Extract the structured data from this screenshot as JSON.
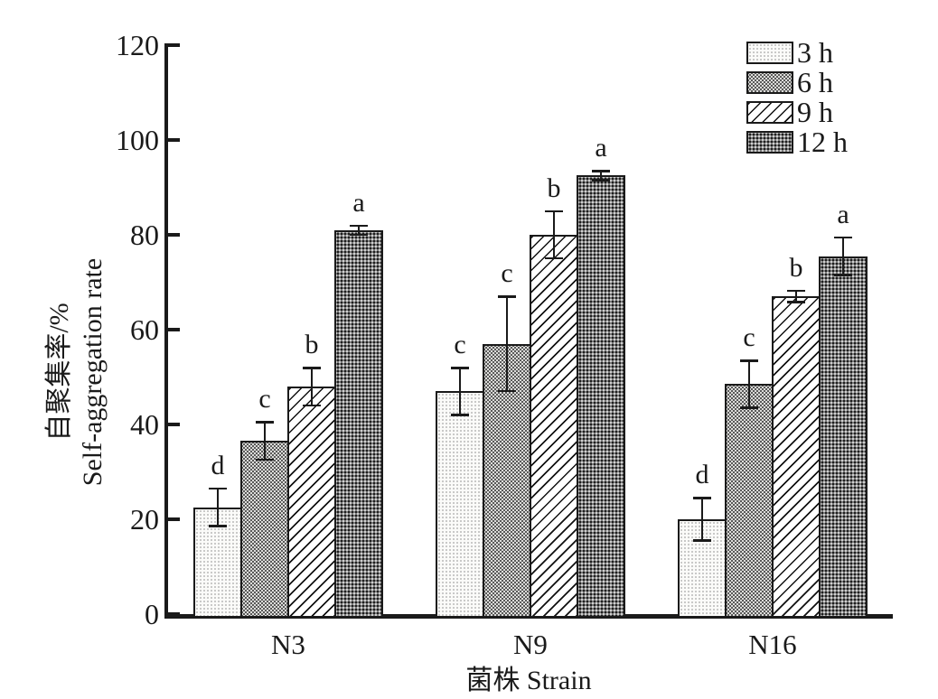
{
  "figure": {
    "background_color": "#ffffff",
    "axis_color": "#1a1a1a"
  },
  "chart_data": {
    "type": "bar",
    "title": "",
    "categories": [
      "N3",
      "N9",
      "N16"
    ],
    "series": [
      {
        "name": "3 h",
        "pattern": "light-dots",
        "values": [
          22.5,
          47.0,
          20.0
        ],
        "errors": [
          4.0,
          5.0,
          4.5
        ],
        "letters": [
          "d",
          "c",
          "d"
        ]
      },
      {
        "name": "6 h",
        "pattern": "gray-checker",
        "values": [
          36.5,
          57.0,
          48.5
        ],
        "errors": [
          4.0,
          10.0,
          5.0
        ],
        "letters": [
          "c",
          "c",
          "c"
        ]
      },
      {
        "name": "9 h",
        "pattern": "diagonal-hatch",
        "values": [
          48.0,
          80.0,
          67.0
        ],
        "errors": [
          4.0,
          5.0,
          1.2
        ],
        "letters": [
          "b",
          "b",
          "b"
        ]
      },
      {
        "name": "12 h",
        "pattern": "dark-checker",
        "values": [
          81.0,
          92.5,
          75.5
        ],
        "errors": [
          1.0,
          1.0,
          4.0
        ],
        "letters": [
          "a",
          "a",
          "a"
        ]
      }
    ],
    "xlabel": "菌株 Strain",
    "ylabel_line1": "自聚集率/%",
    "ylabel_line2": "Self-aggregation rate",
    "ylim": [
      0,
      120
    ],
    "ytick_step": 20,
    "yticks": [
      0,
      20,
      40,
      60,
      80,
      100,
      120
    ],
    "grid": false,
    "error_bars": true,
    "significance_letters": true,
    "legend": {
      "position": "top-right",
      "entries": [
        "3 h",
        "6 h",
        "9 h",
        "12 h"
      ]
    },
    "pattern_colors": {
      "light-dots": {
        "background": "#fbfbf9",
        "dot": "#b8b8b8"
      },
      "gray-checker": {
        "background": "#dcdcda",
        "dot": "#4a4a4a"
      },
      "diagonal-hatch": {
        "background": "#ffffff",
        "line": "#111111"
      },
      "dark-checker": {
        "background": "#7a7a7a",
        "dot": "#1e1e1e"
      }
    }
  }
}
